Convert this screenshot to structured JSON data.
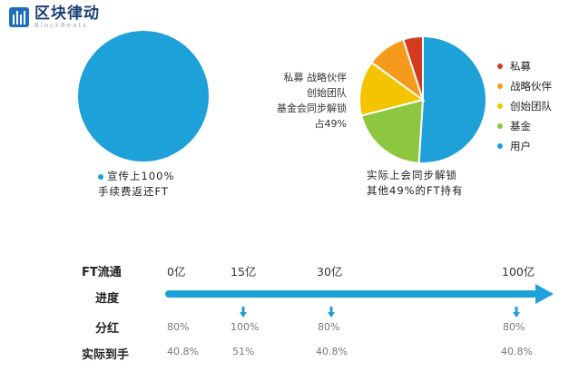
{
  "logo": {
    "name": "区块律动",
    "subtitle": "BlockBeats"
  },
  "chart_data": [
    {
      "type": "pie",
      "title": "",
      "categories": [
        "用户"
      ],
      "values": [
        100
      ],
      "colors": [
        "#1da1d8"
      ],
      "caption": [
        "宣传上100%",
        "手续费返还FT"
      ]
    },
    {
      "type": "pie",
      "title": "",
      "categories": [
        "用户",
        "基金",
        "创始团队",
        "战略伙伴",
        "私募"
      ],
      "values": [
        51,
        20,
        14,
        10,
        5
      ],
      "colors": [
        "#1da1d8",
        "#8dc63f",
        "#f5c400",
        "#f59a1b",
        "#d43a1f"
      ],
      "annotation": [
        "私募 战略伙伴",
        "创始团队",
        "基金会同步解锁",
        "占49%"
      ],
      "caption": [
        "实际上会同步解锁",
        "其他49%的FT持有"
      ]
    }
  ],
  "legend": [
    {
      "label": "私募",
      "color": "#d43a1f"
    },
    {
      "label": "战略伙伴",
      "color": "#f59a1b"
    },
    {
      "label": "创始团队",
      "color": "#f5c400"
    },
    {
      "label": "基金",
      "color": "#8dc63f"
    },
    {
      "label": "用户",
      "color": "#1da1d8"
    }
  ],
  "table": {
    "row_labels": {
      "circulation": "FT流通",
      "progress": "进度",
      "dividend": "分红",
      "actual": "实际到手"
    },
    "circulation": [
      "0亿",
      "15亿",
      "30亿",
      "100亿"
    ],
    "dividend": [
      "80%",
      "100%",
      "80%",
      "80%"
    ],
    "actual": [
      "40.8%",
      "51%",
      "40.8%",
      "40.8%"
    ],
    "arrow_color": "#1da1d8"
  }
}
